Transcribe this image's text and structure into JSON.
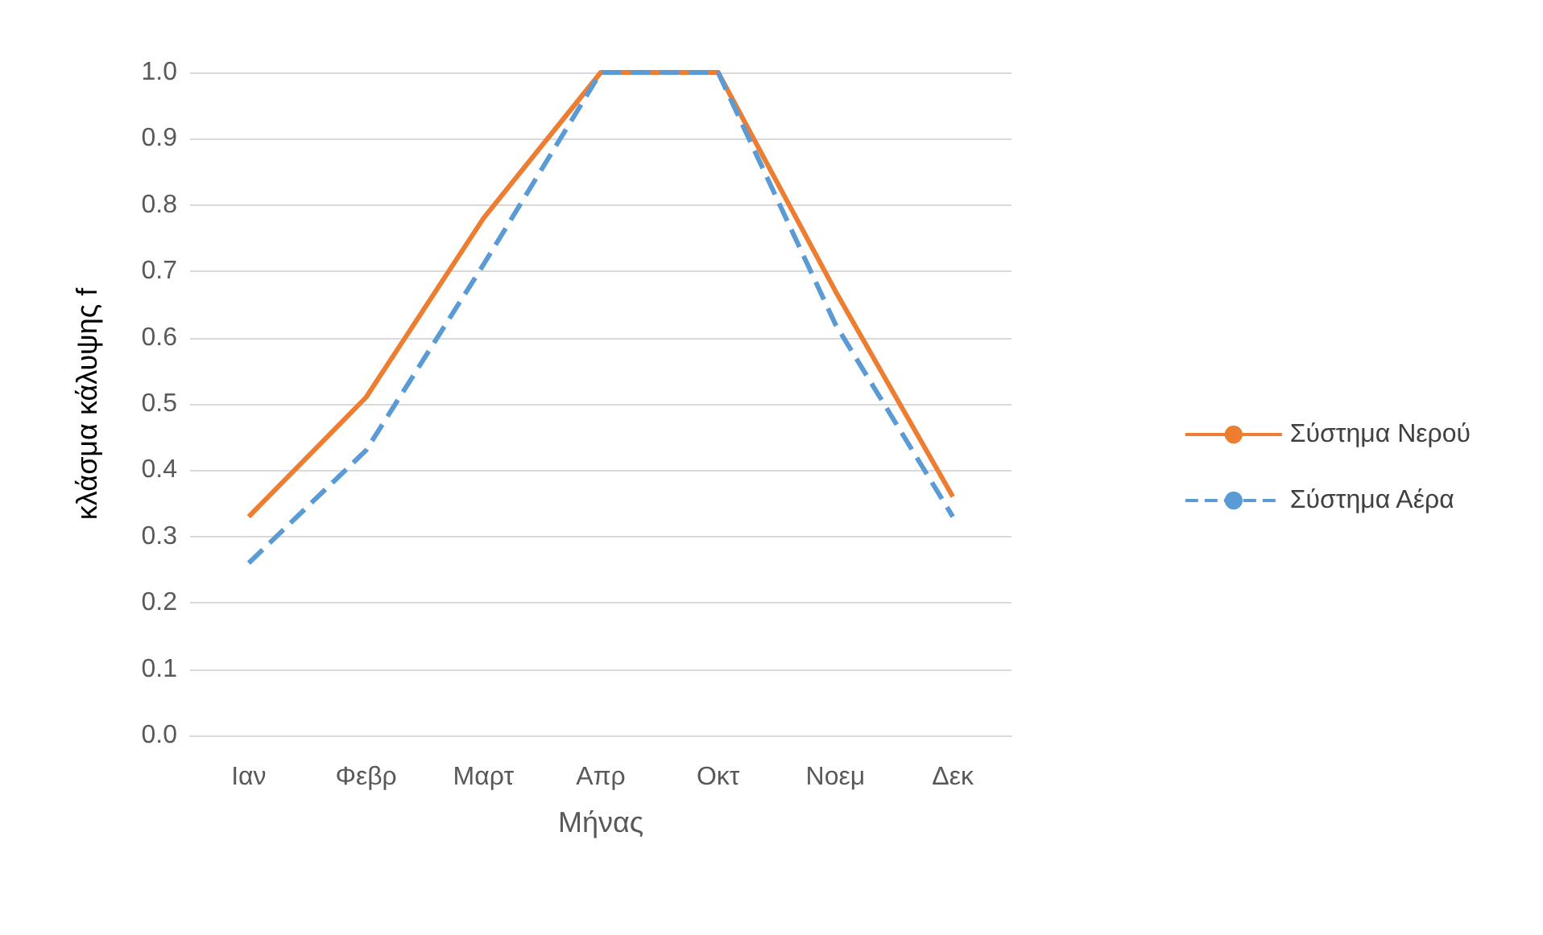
{
  "chart_data": {
    "type": "line",
    "xlabel": "Μήνας",
    "ylabel": "κλάσμα κάλυψης f",
    "categories": [
      "Ιαν",
      "Φεβρ",
      "Μαρτ",
      "Απρ",
      "Οκτ",
      "Νοεμ",
      "Δεκ"
    ],
    "series": [
      {
        "name": "Σύστημα Νερού",
        "color": "#ed7d31",
        "line_style": "solid",
        "values": [
          0.33,
          0.51,
          0.78,
          1.0,
          1.0,
          0.67,
          0.36
        ]
      },
      {
        "name": "Σύστημα Αέρα",
        "color": "#5b9bd5",
        "line_style": "dashed",
        "values": [
          0.26,
          0.43,
          0.71,
          1.0,
          1.0,
          0.62,
          0.33
        ]
      }
    ],
    "ylim": [
      0,
      1
    ],
    "yticks": [
      {
        "value": 0,
        "label": "0.0"
      },
      0.1,
      0.2,
      0.3,
      0.4,
      0.5,
      0.6,
      0.7,
      0.8,
      0.9,
      {
        "value": 1,
        "label": "1.0"
      }
    ],
    "grid": "y",
    "legend": "right",
    "marker": "none"
  }
}
